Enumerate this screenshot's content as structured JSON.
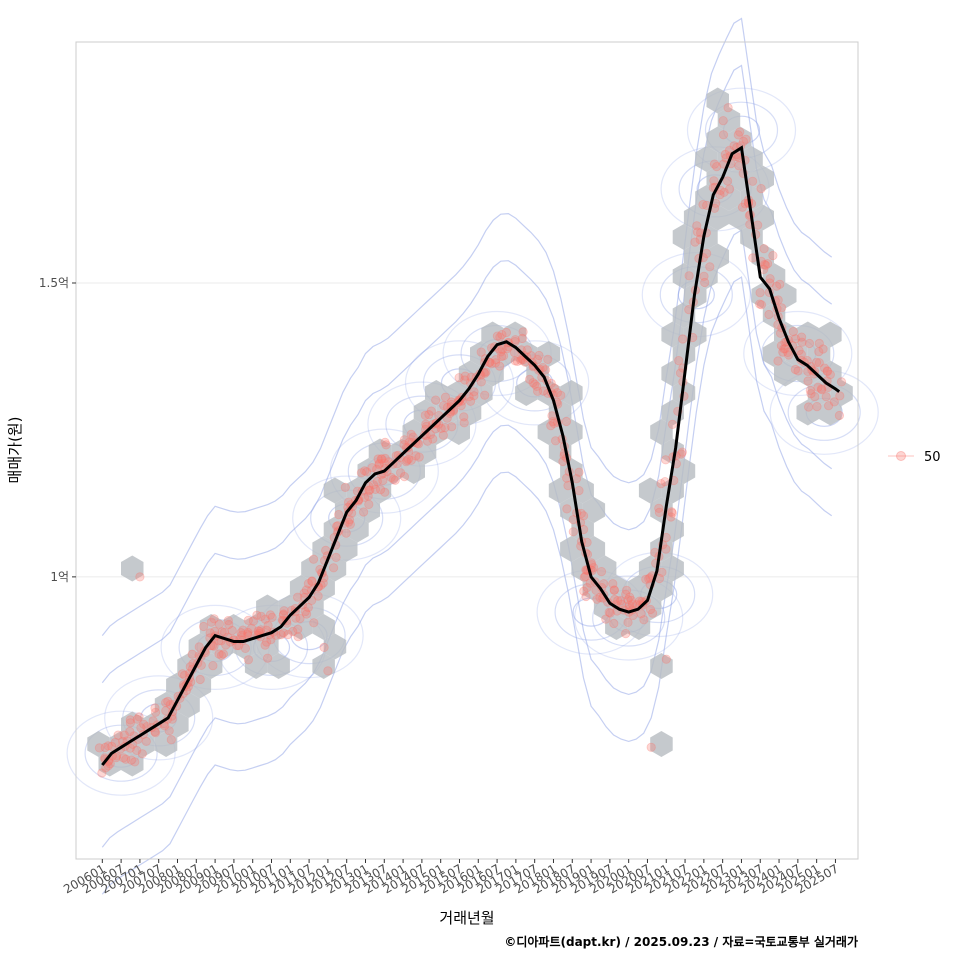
{
  "chart_data": {
    "type": "scatter",
    "title": "",
    "xlabel": "거래년월",
    "ylabel": "매매가(원)",
    "caption": "©디아파트(dapt.kr) / 2025.09.23 / 자료=국토교통부 실거래가",
    "x_ticks": [
      "200601",
      "200607",
      "200701",
      "200707",
      "200801",
      "200807",
      "200901",
      "200907",
      "201001",
      "201007",
      "201101",
      "201107",
      "201201",
      "201207",
      "201301",
      "201307",
      "201401",
      "201407",
      "201501",
      "201507",
      "201601",
      "201607",
      "201701",
      "201707",
      "201801",
      "201807",
      "201901",
      "201907",
      "202001",
      "202007",
      "202101",
      "202107",
      "202201",
      "202207",
      "202301",
      "202307",
      "202401",
      "202407",
      "202501",
      "202507"
    ],
    "y_ticks": [
      {
        "value": 1.0,
        "label": "1억"
      },
      {
        "value": 1.5,
        "label": "1.5억"
      }
    ],
    "x_range": [
      2005.3,
      2026.1
    ],
    "y_range": [
      0.52,
      1.91
    ],
    "legend": {
      "label": "50",
      "position": "right"
    },
    "colors": {
      "point": "#f8766d",
      "hex": "#b7bcc0",
      "contour": "#8ca0e6",
      "trend": "#000000",
      "grid": "#ebebeb",
      "panel_border": "#cccccc"
    },
    "trend": [
      [
        2006.0,
        0.68
      ],
      [
        2006.25,
        0.7
      ],
      [
        2006.5,
        0.71
      ],
      [
        2006.75,
        0.72
      ],
      [
        2007.0,
        0.73
      ],
      [
        2007.25,
        0.74
      ],
      [
        2007.5,
        0.75
      ],
      [
        2007.75,
        0.76
      ],
      [
        2008.0,
        0.79
      ],
      [
        2008.25,
        0.82
      ],
      [
        2008.5,
        0.85
      ],
      [
        2008.75,
        0.88
      ],
      [
        2009.0,
        0.9
      ],
      [
        2009.25,
        0.895
      ],
      [
        2009.5,
        0.89
      ],
      [
        2009.75,
        0.89
      ],
      [
        2010.0,
        0.895
      ],
      [
        2010.25,
        0.9
      ],
      [
        2010.5,
        0.905
      ],
      [
        2010.75,
        0.915
      ],
      [
        2011.0,
        0.935
      ],
      [
        2011.25,
        0.95
      ],
      [
        2011.5,
        0.965
      ],
      [
        2011.75,
        0.99
      ],
      [
        2012.0,
        1.03
      ],
      [
        2012.25,
        1.07
      ],
      [
        2012.5,
        1.11
      ],
      [
        2012.75,
        1.13
      ],
      [
        2013.0,
        1.16
      ],
      [
        2013.25,
        1.175
      ],
      [
        2013.5,
        1.18
      ],
      [
        2013.75,
        1.195
      ],
      [
        2014.0,
        1.21
      ],
      [
        2014.25,
        1.225
      ],
      [
        2014.5,
        1.24
      ],
      [
        2014.75,
        1.255
      ],
      [
        2015.0,
        1.27
      ],
      [
        2015.25,
        1.285
      ],
      [
        2015.5,
        1.3
      ],
      [
        2015.75,
        1.32
      ],
      [
        2016.0,
        1.345
      ],
      [
        2016.25,
        1.375
      ],
      [
        2016.5,
        1.395
      ],
      [
        2016.75,
        1.4
      ],
      [
        2017.0,
        1.39
      ],
      [
        2017.25,
        1.375
      ],
      [
        2017.5,
        1.36
      ],
      [
        2017.75,
        1.34
      ],
      [
        2018.0,
        1.3
      ],
      [
        2018.25,
        1.24
      ],
      [
        2018.5,
        1.16
      ],
      [
        2018.75,
        1.06
      ],
      [
        2019.0,
        1.0
      ],
      [
        2019.25,
        0.98
      ],
      [
        2019.5,
        0.955
      ],
      [
        2019.75,
        0.945
      ],
      [
        2020.0,
        0.94
      ],
      [
        2020.25,
        0.945
      ],
      [
        2020.5,
        0.96
      ],
      [
        2020.75,
        1.01
      ],
      [
        2021.0,
        1.12
      ],
      [
        2021.25,
        1.22
      ],
      [
        2021.5,
        1.35
      ],
      [
        2021.75,
        1.48
      ],
      [
        2022.0,
        1.58
      ],
      [
        2022.25,
        1.65
      ],
      [
        2022.5,
        1.68
      ],
      [
        2022.75,
        1.72
      ],
      [
        2023.0,
        1.73
      ],
      [
        2023.25,
        1.62
      ],
      [
        2023.5,
        1.51
      ],
      [
        2023.75,
        1.49
      ],
      [
        2024.0,
        1.44
      ],
      [
        2024.25,
        1.4
      ],
      [
        2024.5,
        1.37
      ],
      [
        2024.75,
        1.36
      ],
      [
        2025.0,
        1.345
      ],
      [
        2025.25,
        1.33
      ],
      [
        2025.5,
        1.32
      ],
      [
        2025.6,
        1.315
      ]
    ],
    "cluster_centers": [
      [
        2006.5,
        0.7
      ],
      [
        2007.5,
        0.76
      ],
      [
        2009.0,
        0.88
      ],
      [
        2010.5,
        0.88
      ],
      [
        2011.5,
        0.9
      ],
      [
        2012.5,
        1.1
      ],
      [
        2013.5,
        1.18
      ],
      [
        2014.5,
        1.26
      ],
      [
        2015.5,
        1.33
      ],
      [
        2016.5,
        1.38
      ],
      [
        2017.5,
        1.33
      ],
      [
        2019.0,
        0.94
      ],
      [
        2020.0,
        0.93
      ],
      [
        2020.8,
        0.97
      ],
      [
        2021.8,
        1.48
      ],
      [
        2022.3,
        1.66
      ],
      [
        2023.0,
        1.76
      ],
      [
        2024.5,
        1.38
      ],
      [
        2025.2,
        1.28
      ]
    ]
  }
}
